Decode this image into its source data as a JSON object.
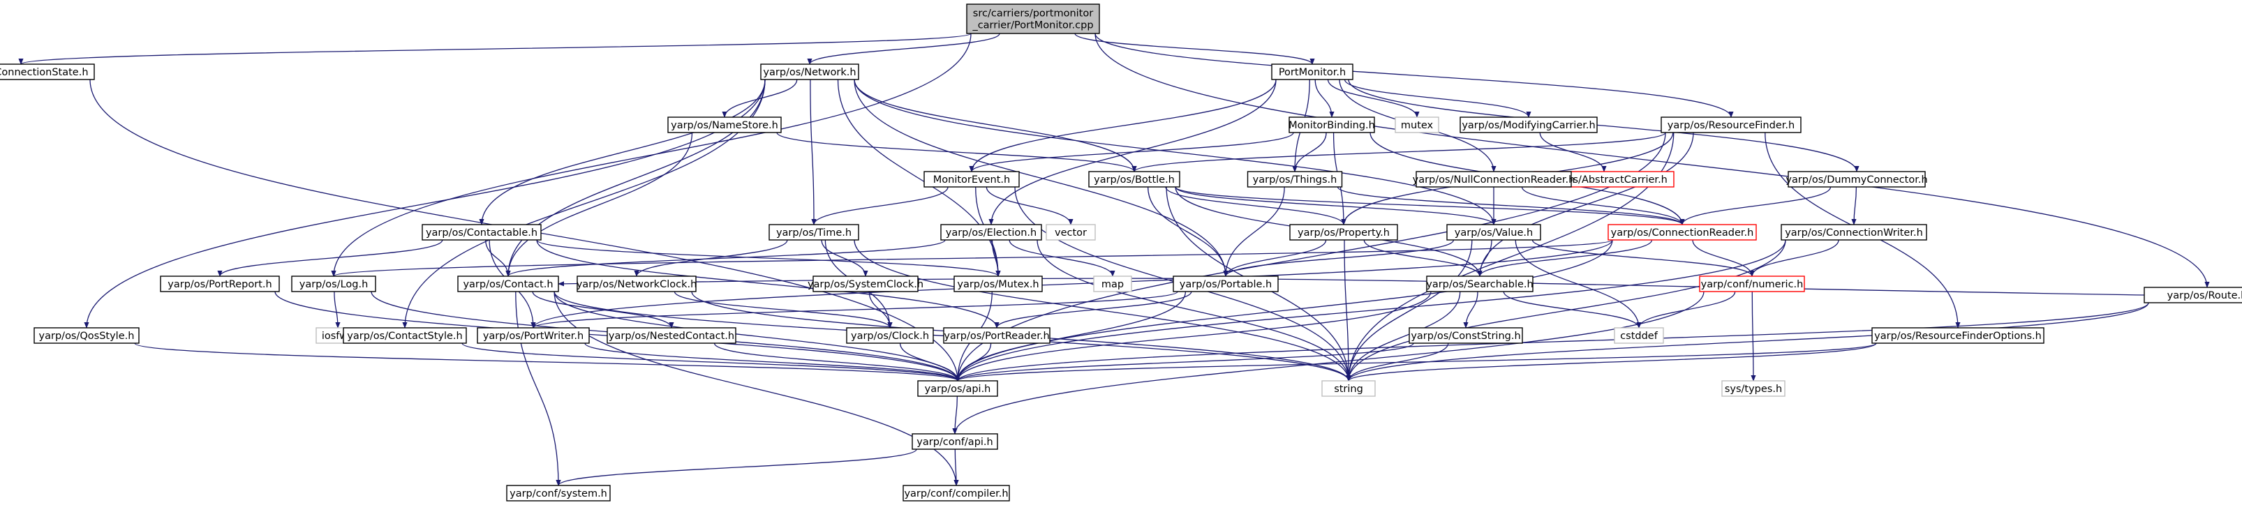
{
  "graph": {
    "nodes": [
      {
        "id": "root",
        "label": "src/carriers/portmonitor\n_carrier/PortMonitor.cpp",
        "style": "root"
      },
      {
        "id": "connstate",
        "label": "yarp/os/ConnectionState.h",
        "style": "normal"
      },
      {
        "id": "network",
        "label": "yarp/os/Network.h",
        "style": "normal"
      },
      {
        "id": "portmonitor",
        "label": "PortMonitor.h",
        "style": "normal"
      },
      {
        "id": "resfinder",
        "label": "yarp/os/ResourceFinder.h",
        "style": "normal"
      },
      {
        "id": "route",
        "label": "yarp/os/Route.h",
        "style": "normal"
      },
      {
        "id": "namestore",
        "label": "yarp/os/NameStore.h",
        "style": "normal"
      },
      {
        "id": "monbinding",
        "label": "MonitorBinding.h",
        "style": "normal"
      },
      {
        "id": "mutexx",
        "label": "mutex",
        "style": "system"
      },
      {
        "id": "modcarrier",
        "label": "yarp/os/ModifyingCarrier.h",
        "style": "normal"
      },
      {
        "id": "abscarrier",
        "label": "yarp/os/AbstractCarrier.h",
        "style": "truncated"
      },
      {
        "id": "monevent",
        "label": "MonitorEvent.h",
        "style": "normal"
      },
      {
        "id": "bottle",
        "label": "yarp/os/Bottle.h",
        "style": "normal"
      },
      {
        "id": "things",
        "label": "yarp/os/Things.h",
        "style": "normal"
      },
      {
        "id": "nullconn",
        "label": "yarp/os/NullConnectionReader.h",
        "style": "normal"
      },
      {
        "id": "dummyconn",
        "label": "yarp/os/DummyConnector.h",
        "style": "normal"
      },
      {
        "id": "vector",
        "label": "vector",
        "style": "system"
      },
      {
        "id": "time",
        "label": "yarp/os/Time.h",
        "style": "normal"
      },
      {
        "id": "contactable",
        "label": "yarp/os/Contactable.h",
        "style": "normal"
      },
      {
        "id": "election",
        "label": "yarp/os/Election.h",
        "style": "normal"
      },
      {
        "id": "property",
        "label": "yarp/os/Property.h",
        "style": "normal"
      },
      {
        "id": "value",
        "label": "yarp/os/Value.h",
        "style": "normal"
      },
      {
        "id": "connreader",
        "label": "yarp/os/ConnectionReader.h",
        "style": "truncated"
      },
      {
        "id": "connwriter",
        "label": "yarp/os/ConnectionWriter.h",
        "style": "normal"
      },
      {
        "id": "portreport",
        "label": "yarp/os/PortReport.h",
        "style": "normal"
      },
      {
        "id": "log",
        "label": "yarp/os/Log.h",
        "style": "normal"
      },
      {
        "id": "contact",
        "label": "yarp/os/Contact.h",
        "style": "normal"
      },
      {
        "id": "netclock",
        "label": "yarp/os/NetworkClock.h",
        "style": "normal"
      },
      {
        "id": "sysclock",
        "label": "yarp/os/SystemClock.h",
        "style": "normal"
      },
      {
        "id": "mutexh",
        "label": "yarp/os/Mutex.h",
        "style": "normal"
      },
      {
        "id": "map",
        "label": "map",
        "style": "system"
      },
      {
        "id": "portable",
        "label": "yarp/os/Portable.h",
        "style": "normal"
      },
      {
        "id": "searchable",
        "label": "yarp/os/Searchable.h",
        "style": "normal"
      },
      {
        "id": "numeric",
        "label": "yarp/conf/numeric.h",
        "style": "truncated"
      },
      {
        "id": "iosfwd",
        "label": "iosfwd",
        "style": "system"
      },
      {
        "id": "qosstyle",
        "label": "yarp/os/QosStyle.h",
        "style": "normal"
      },
      {
        "id": "contactstyle",
        "label": "yarp/os/ContactStyle.h",
        "style": "normal"
      },
      {
        "id": "portwriter",
        "label": "yarp/os/PortWriter.h",
        "style": "normal"
      },
      {
        "id": "nestedcontact",
        "label": "yarp/os/NestedContact.h",
        "style": "normal"
      },
      {
        "id": "clock",
        "label": "yarp/os/Clock.h",
        "style": "normal"
      },
      {
        "id": "portreader",
        "label": "yarp/os/PortReader.h",
        "style": "normal"
      },
      {
        "id": "cstddef",
        "label": "cstddef",
        "style": "system"
      },
      {
        "id": "conststring",
        "label": "yarp/os/ConstString.h",
        "style": "normal"
      },
      {
        "id": "systypes",
        "label": "sys/types.h",
        "style": "system"
      },
      {
        "id": "resfinderopts",
        "label": "yarp/os/ResourceFinderOptions.h",
        "style": "normal"
      },
      {
        "id": "string",
        "label": "string",
        "style": "system"
      },
      {
        "id": "api",
        "label": "yarp/os/api.h",
        "style": "normal"
      },
      {
        "id": "confapi",
        "label": "yarp/conf/api.h",
        "style": "normal"
      },
      {
        "id": "confsystem",
        "label": "yarp/conf/system.h",
        "style": "normal"
      },
      {
        "id": "confcompiler",
        "label": "yarp/conf/compiler.h",
        "style": "normal"
      }
    ],
    "edges": [
      [
        "root",
        "connstate"
      ],
      [
        "root",
        "network"
      ],
      [
        "root",
        "portmonitor"
      ],
      [
        "root",
        "resfinder"
      ],
      [
        "root",
        "route"
      ],
      [
        "root",
        "log"
      ],
      [
        "connstate",
        "api"
      ],
      [
        "network",
        "namestore"
      ],
      [
        "network",
        "bottle"
      ],
      [
        "network",
        "time"
      ],
      [
        "network",
        "contactable"
      ],
      [
        "network",
        "contact"
      ],
      [
        "network",
        "qosstyle"
      ],
      [
        "network",
        "contactstyle"
      ],
      [
        "network",
        "portable"
      ],
      [
        "network",
        "value"
      ],
      [
        "network",
        "mutexh"
      ],
      [
        "portmonitor",
        "monbinding"
      ],
      [
        "portmonitor",
        "mutexx"
      ],
      [
        "portmonitor",
        "modcarrier"
      ],
      [
        "portmonitor",
        "monevent"
      ],
      [
        "portmonitor",
        "things"
      ],
      [
        "portmonitor",
        "nullconn"
      ],
      [
        "portmonitor",
        "dummyconn"
      ],
      [
        "portmonitor",
        "election"
      ],
      [
        "resfinder",
        "bottle"
      ],
      [
        "resfinder",
        "property"
      ],
      [
        "resfinder",
        "searchable"
      ],
      [
        "resfinder",
        "resfinderopts"
      ],
      [
        "resfinder",
        "string"
      ],
      [
        "resfinder",
        "api"
      ],
      [
        "route",
        "contact"
      ],
      [
        "route",
        "string"
      ],
      [
        "route",
        "api"
      ],
      [
        "namestore",
        "bottle"
      ],
      [
        "namestore",
        "contact"
      ],
      [
        "monbinding",
        "monevent"
      ],
      [
        "monbinding",
        "things"
      ],
      [
        "monbinding",
        "property"
      ],
      [
        "monbinding",
        "connreader"
      ],
      [
        "modcarrier",
        "abscarrier"
      ],
      [
        "monevent",
        "time"
      ],
      [
        "monevent",
        "vector"
      ],
      [
        "monevent",
        "string"
      ],
      [
        "monevent",
        "mutexh"
      ],
      [
        "bottle",
        "portable"
      ],
      [
        "bottle",
        "property"
      ],
      [
        "bottle",
        "value"
      ],
      [
        "bottle",
        "searchable"
      ],
      [
        "bottle",
        "string"
      ],
      [
        "bottle",
        "connreader"
      ],
      [
        "things",
        "portable"
      ],
      [
        "things",
        "connreader"
      ],
      [
        "nullconn",
        "value"
      ],
      [
        "nullconn",
        "connreader"
      ],
      [
        "dummyconn",
        "connwriter"
      ],
      [
        "dummyconn",
        "connreader"
      ],
      [
        "time",
        "sysclock"
      ],
      [
        "time",
        "netclock"
      ],
      [
        "time",
        "clock"
      ],
      [
        "time",
        "string"
      ],
      [
        "contactable",
        "contact"
      ],
      [
        "contactable",
        "portreport"
      ],
      [
        "contactable",
        "mutexh"
      ],
      [
        "contactable",
        "portwriter"
      ],
      [
        "contactable",
        "portreader"
      ],
      [
        "election",
        "mutexh"
      ],
      [
        "election",
        "map"
      ],
      [
        "election",
        "string"
      ],
      [
        "election",
        "contact"
      ],
      [
        "property",
        "searchable"
      ],
      [
        "property",
        "portable"
      ],
      [
        "property",
        "string"
      ],
      [
        "value",
        "searchable"
      ],
      [
        "value",
        "portable"
      ],
      [
        "value",
        "string"
      ],
      [
        "value",
        "numeric"
      ],
      [
        "value",
        "cstddef"
      ],
      [
        "connreader",
        "searchable"
      ],
      [
        "connreader",
        "numeric"
      ],
      [
        "connreader",
        "log"
      ],
      [
        "connreader",
        "api"
      ],
      [
        "connreader",
        "portwriter"
      ],
      [
        "connwriter",
        "numeric"
      ],
      [
        "connwriter",
        "string"
      ],
      [
        "connwriter",
        "api"
      ],
      [
        "portreport",
        "api"
      ],
      [
        "log",
        "iosfwd"
      ],
      [
        "log",
        "api"
      ],
      [
        "contact",
        "nestedcontact"
      ],
      [
        "contact",
        "string"
      ],
      [
        "contact",
        "api"
      ],
      [
        "contact",
        "confsystem"
      ],
      [
        "contact",
        "confcompiler"
      ],
      [
        "netclock",
        "clock"
      ],
      [
        "netclock",
        "string"
      ],
      [
        "sysclock",
        "clock"
      ],
      [
        "mutexh",
        "api"
      ],
      [
        "portable",
        "portreader"
      ],
      [
        "portable",
        "portwriter"
      ],
      [
        "portable",
        "api"
      ],
      [
        "searchable",
        "conststring"
      ],
      [
        "searchable",
        "cstddef"
      ],
      [
        "searchable",
        "string"
      ],
      [
        "searchable",
        "api"
      ],
      [
        "numeric",
        "systypes"
      ],
      [
        "numeric",
        "cstddef"
      ],
      [
        "numeric",
        "confapi"
      ],
      [
        "qosstyle",
        "api"
      ],
      [
        "contactstyle",
        "api"
      ],
      [
        "portwriter",
        "api"
      ],
      [
        "nestedcontact",
        "api"
      ],
      [
        "clock",
        "api"
      ],
      [
        "portreader",
        "api"
      ],
      [
        "conststring",
        "string"
      ],
      [
        "conststring",
        "api"
      ],
      [
        "resfinderopts",
        "string"
      ],
      [
        "resfinderopts",
        "api"
      ],
      [
        "api",
        "confapi"
      ],
      [
        "confapi",
        "confsystem"
      ],
      [
        "confapi",
        "confcompiler"
      ]
    ]
  },
  "colors": {
    "edge": "#191970",
    "node_border": "#000000",
    "root_fill": "#bfbfbf",
    "root_border": "#000000",
    "system_border": "#bfbfbf",
    "truncated_border": "#ff0000",
    "fill": "#ffffff",
    "text": "#000000"
  }
}
